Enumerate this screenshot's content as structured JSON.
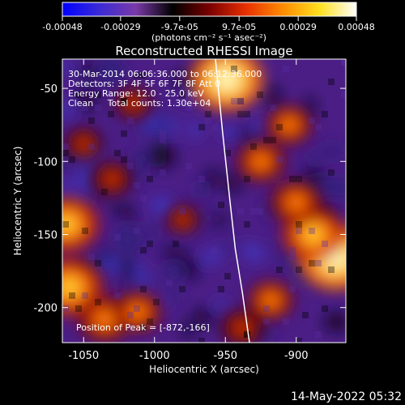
{
  "colorbar": {
    "ticks": [
      "-0.00048",
      "-0.00029",
      "-9.7e-05",
      "9.7e-05",
      "0.00029",
      "0.00048"
    ],
    "tick_values": [
      -0.00048,
      -0.00029,
      -9.7e-05,
      9.7e-05,
      0.00029,
      0.00048
    ],
    "unit_label": "(photons cm⁻² s⁻¹ asec⁻²)",
    "colors": [
      "#0000ff",
      "#3a2bd6",
      "#7a3aa8",
      "#000000",
      "#7a0000",
      "#e83000",
      "#ff8c00",
      "#ffe020",
      "#ffffff"
    ]
  },
  "annotations": {
    "time_range": "30-Mar-2014 06:06:36.000 to 06:12:36.000",
    "detectors": "Detectors: 3F 4F 5F 6F 7F 8F Att 0",
    "energy_range": "Energy Range: 12.0 - 25.0 keV",
    "clean_counts": "Clean     Total counts: 1.30e+04",
    "peak_position": "Position of Peak = [-872,-166]"
  },
  "footer": {
    "timestamp": "14-May-2022 05:32"
  },
  "limb_color": "#ffffff",
  "chart_data": {
    "type": "heatmap",
    "title": "Reconstructed RHESSI Image",
    "xlabel": "Heliocentric X (arcsec)",
    "ylabel": "Heliocentric Y (arcsec)",
    "xlim": [
      -1065,
      -865
    ],
    "ylim": [
      -224,
      -30
    ],
    "xticks": [
      -1050,
      -1000,
      -950,
      -900
    ],
    "xtick_labels": [
      "-1050",
      "-1000",
      "-950",
      "-900"
    ],
    "yticks": [
      -50,
      -100,
      -150,
      -200
    ],
    "ytick_labels": [
      "-50",
      "-100",
      "-150",
      "-200"
    ],
    "peak": [
      -872,
      -166
    ],
    "colorbar_range": [
      -0.00048,
      0.00048
    ],
    "bright_regions": [
      {
        "x": -949,
        "y": -44,
        "rel_intensity": 0.95
      },
      {
        "x": -872,
        "y": -166,
        "rel_intensity": 1.0
      },
      {
        "x": -888,
        "y": -150,
        "rel_intensity": 0.75
      },
      {
        "x": -900,
        "y": -128,
        "rel_intensity": 0.55
      },
      {
        "x": -1062,
        "y": -143,
        "rel_intensity": 0.8
      },
      {
        "x": -1060,
        "y": -186,
        "rel_intensity": 0.85
      },
      {
        "x": -1035,
        "y": -208,
        "rel_intensity": 0.6
      },
      {
        "x": -1012,
        "y": -203,
        "rel_intensity": 0.5
      },
      {
        "x": -925,
        "y": -100,
        "rel_intensity": 0.5
      },
      {
        "x": -918,
        "y": -195,
        "rel_intensity": 0.45
      },
      {
        "x": -938,
        "y": -214,
        "rel_intensity": 0.4
      },
      {
        "x": -1030,
        "y": -112,
        "rel_intensity": 0.35
      },
      {
        "x": -1050,
        "y": -88,
        "rel_intensity": 0.3
      },
      {
        "x": -1015,
        "y": -60,
        "rel_intensity": 0.3
      },
      {
        "x": -980,
        "y": -140,
        "rel_intensity": 0.25
      },
      {
        "x": -905,
        "y": -75,
        "rel_intensity": 0.45
      }
    ],
    "solar_limb": [
      [
        -957,
        -30
      ],
      [
        -952,
        -80
      ],
      [
        -947,
        -125
      ],
      [
        -943,
        -160
      ],
      [
        -938,
        -190
      ],
      [
        -933,
        -224
      ]
    ]
  }
}
